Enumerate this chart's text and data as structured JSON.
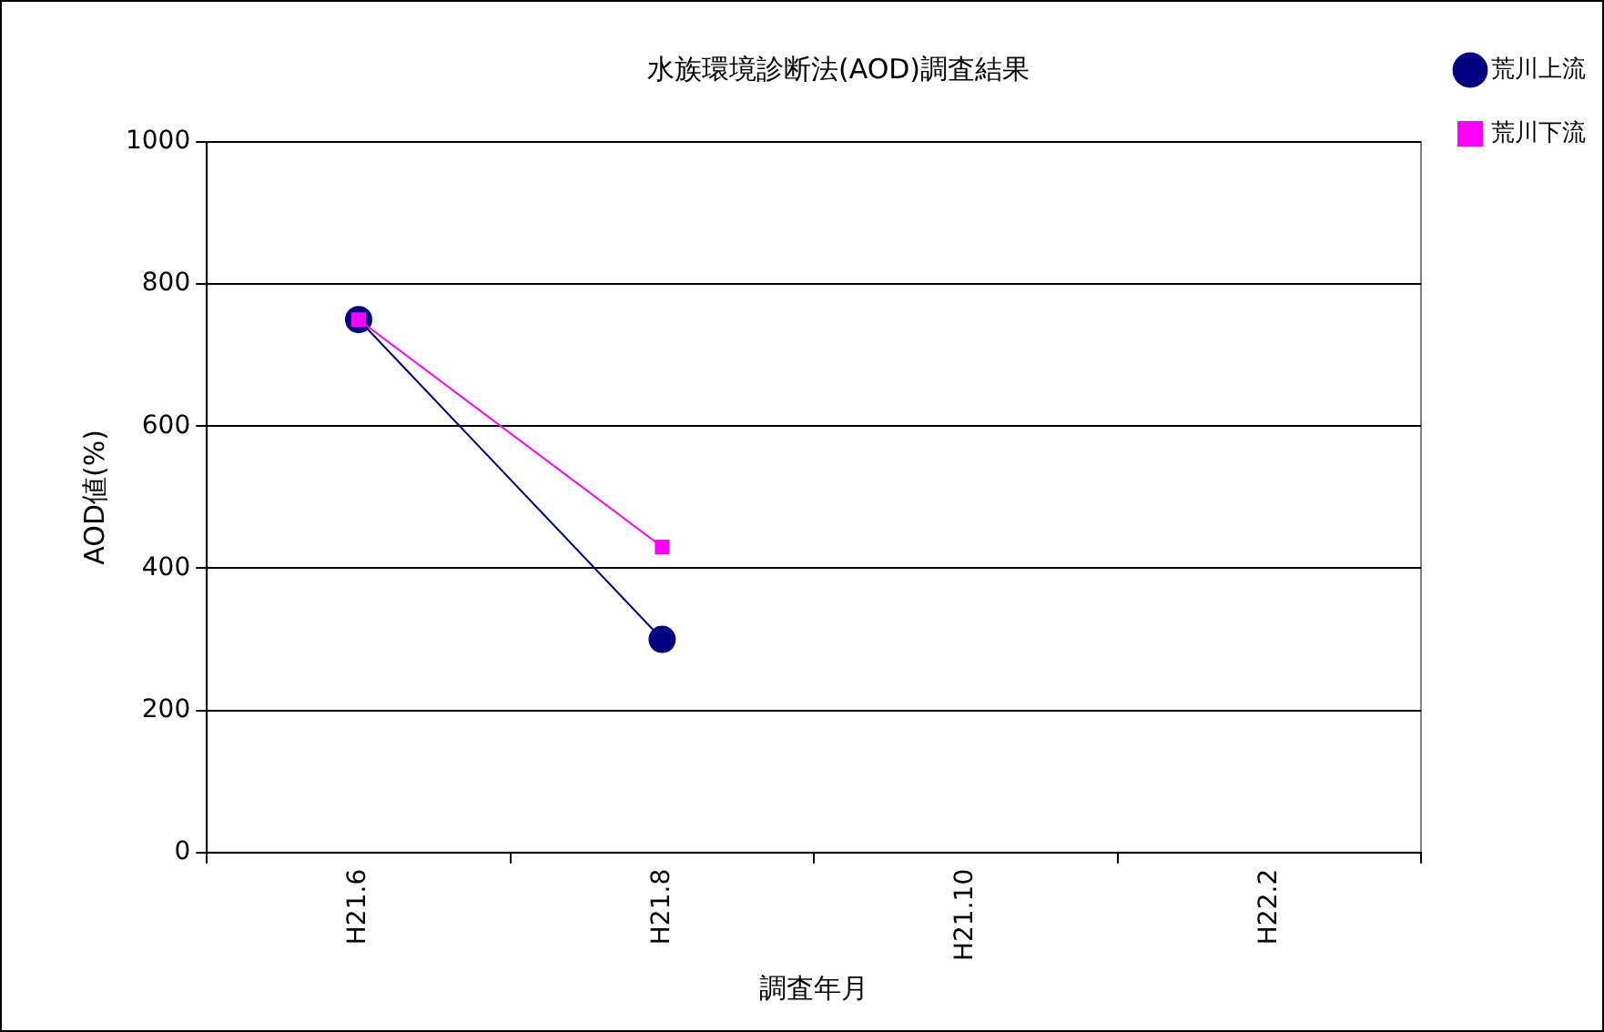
{
  "chart_data": {
    "type": "line",
    "title": "水族環境診断法(AOD)調査結果",
    "xlabel": "調査年月",
    "ylabel": "AOD値(%)",
    "categories": [
      "H21.6",
      "H21.8",
      "H21.10",
      "H22.2"
    ],
    "series": [
      {
        "name": "荒川上流",
        "color": "#000080",
        "values": [
          750,
          300,
          null,
          null
        ],
        "marker": "circle"
      },
      {
        "name": "荒川下流",
        "color": "#ff00ff",
        "values": [
          750,
          430,
          null,
          null
        ],
        "marker": "square"
      }
    ],
    "ylim": [
      0,
      1000
    ],
    "yticks": [
      0,
      200,
      400,
      600,
      800,
      1000
    ],
    "grid": "y",
    "legend": "top right",
    "line_style": "solid"
  }
}
